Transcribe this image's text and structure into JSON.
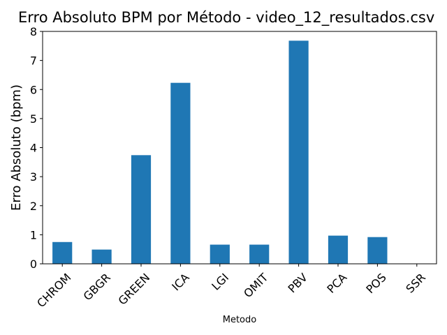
{
  "chart_data": {
    "type": "bar",
    "title": "Erro Absoluto BPM por Método - video_12_resultados.csv",
    "xlabel": "Metodo",
    "ylabel": "Erro Absoluto (bpm)",
    "categories": [
      "CHROM",
      "GBGR",
      "GREEN",
      "ICA",
      "LGI",
      "OMIT",
      "PBV",
      "PCA",
      "POS",
      "SSR"
    ],
    "values": [
      0.75,
      0.49,
      3.74,
      6.23,
      0.66,
      0.66,
      7.68,
      0.97,
      0.92,
      0.0
    ],
    "ylim": [
      0,
      8
    ],
    "yticks": [
      0,
      1,
      2,
      3,
      4,
      5,
      6,
      7,
      8
    ],
    "xtick_rotation": 45,
    "grid": false,
    "legend": "none",
    "colors": {
      "bar": "#1f77b4",
      "axis": "#000000",
      "background": "#ffffff"
    }
  }
}
